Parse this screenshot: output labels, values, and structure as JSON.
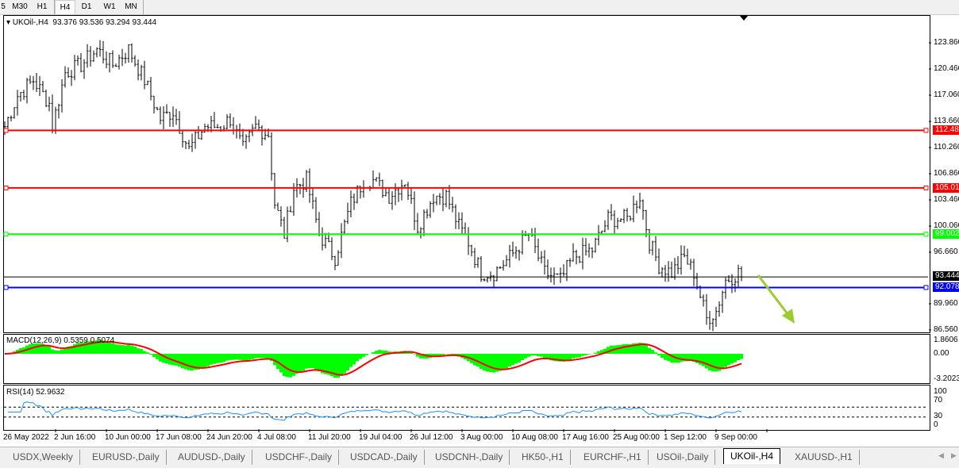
{
  "toolbar": {
    "timeframes": [
      "5",
      "M30",
      "H1",
      "H4",
      "D1",
      "W1",
      "MN"
    ],
    "active": "H4"
  },
  "chart": {
    "title": "UKOil-,H4",
    "ohlc": "93.376 93.536 93.294 93.444",
    "price_axis": [
      "123.860",
      "120.460",
      "117.060",
      "113.660",
      "110.260",
      "106.860",
      "103.460",
      "100.060",
      "96.660",
      "89.960",
      "86.560"
    ],
    "price_levels": [
      123.86,
      120.46,
      117.06,
      113.66,
      110.26,
      106.86,
      103.46,
      100.06,
      96.66,
      89.96,
      86.56
    ],
    "hlines": [
      {
        "price": 112.486,
        "label": "112.486",
        "color": "#ff0000"
      },
      {
        "price": 105.015,
        "label": "105.015",
        "color": "#ff0000"
      },
      {
        "price": 99.002,
        "label": "99.002",
        "color": "#00ff00"
      },
      {
        "price": 92.078,
        "label": "92.078",
        "color": "#0000ff"
      }
    ],
    "current_price": {
      "price": 93.444,
      "label": "93.444"
    },
    "arrow_color": "#9acd32",
    "path": [
      [
        0,
        113
      ],
      [
        4,
        117
      ],
      [
        9,
        119
      ],
      [
        14,
        116
      ],
      [
        15,
        113
      ],
      [
        19,
        120
      ],
      [
        24,
        121
      ],
      [
        29,
        123
      ],
      [
        34,
        121
      ],
      [
        39,
        123
      ],
      [
        44,
        119
      ],
      [
        49,
        114
      ],
      [
        53,
        115
      ],
      [
        58,
        110
      ],
      [
        63,
        113
      ],
      [
        68,
        113
      ],
      [
        71,
        114
      ],
      [
        75,
        110
      ],
      [
        79,
        113
      ],
      [
        83,
        112
      ],
      [
        85,
        103
      ],
      [
        88,
        99
      ],
      [
        91,
        105
      ],
      [
        95,
        106
      ],
      [
        99,
        99
      ],
      [
        104,
        96
      ],
      [
        109,
        103
      ],
      [
        113,
        106
      ],
      [
        116,
        106
      ],
      [
        121,
        104
      ],
      [
        126,
        106
      ],
      [
        130,
        100
      ],
      [
        135,
        104
      ],
      [
        139,
        104
      ],
      [
        143,
        100
      ],
      [
        146,
        98
      ],
      [
        150,
        94
      ],
      [
        154,
        94
      ],
      [
        159,
        96
      ],
      [
        165,
        99
      ],
      [
        170,
        94
      ],
      [
        175,
        93
      ],
      [
        179,
        96
      ],
      [
        185,
        97
      ],
      [
        190,
        101
      ],
      [
        196,
        101
      ],
      [
        200,
        104
      ],
      [
        203,
        98
      ],
      [
        206,
        95
      ],
      [
        210,
        94
      ],
      [
        214,
        96
      ],
      [
        217,
        94
      ],
      [
        221,
        88
      ],
      [
        224,
        89
      ],
      [
        227,
        93
      ],
      [
        231,
        94
      ],
      [
        232,
        93.44
      ]
    ]
  },
  "macd": {
    "label": "MACD(12,26,9) 0.5359 0.5074",
    "axis": [
      "1.8606",
      "0.00",
      "-3.2023"
    ]
  },
  "rsi": {
    "label": "RSI(14) 52.9632",
    "axis": [
      "100",
      "70",
      "30",
      "0"
    ]
  },
  "time_axis": [
    "26 May 2022",
    "2 Jun 16:00",
    "10 Jun 00:00",
    "17 Jun 08:00",
    "24 Jun 20:00",
    "4 Jul 08:00",
    "11 Jul 20:00",
    "19 Jul 04:00",
    "26 Jul 12:00",
    "3 Aug 00:00",
    "10 Aug 08:00",
    "17 Aug 16:00",
    "25 Aug 00:00",
    "1 Sep 12:00",
    "9 Sep 00:00"
  ],
  "tabs": [
    "USDX,Weekly",
    "EURUSD-,Daily",
    "AUDUSD-,Daily",
    "USDCHF-,Daily",
    "USDCAD-,Daily",
    "USDCNH-,Daily",
    "HK50-,H1",
    "EURCHF-,H1",
    "USOil-,Daily",
    "UKOil-,H4",
    "XAUUSD-,H1"
  ],
  "active_tab": "UKOil-,H4"
}
